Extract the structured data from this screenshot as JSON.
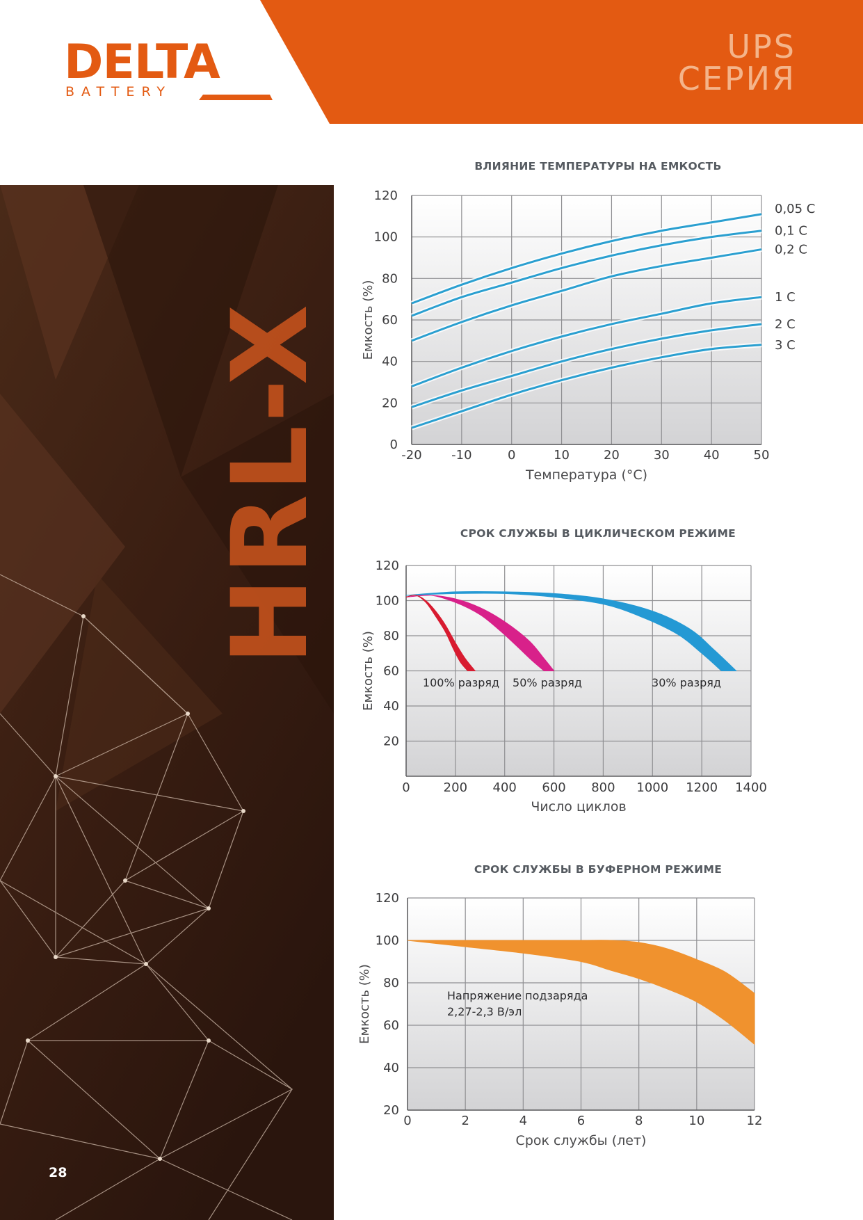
{
  "brand": {
    "logo_word": "DELTA",
    "logo_sub": "BATTERY",
    "series_line1": "UPS",
    "series_line2": "СЕРИЯ",
    "accent_color": "#e35a12",
    "side_text": "HRL-X"
  },
  "page_number": "28",
  "charts": [
    {
      "title": "ВЛИЯНИЕ ТЕМПЕРАТУРЫ НА ЕМКОСТЬ",
      "chart_data": {
        "type": "line",
        "title": "ВЛИЯНИЕ ТЕМПЕРАТУРЫ НА ЕМКОСТЬ",
        "xlabel": "Температура (°C)",
        "ylabel": "Емкость (%)",
        "xlim": [
          -20,
          50
        ],
        "ylim": [
          0,
          120
        ],
        "x_ticks": [
          "-20",
          "-10",
          "0",
          "10",
          "20",
          "30",
          "40",
          "50"
        ],
        "y_ticks": [
          "0",
          "20",
          "40",
          "60",
          "80",
          "100",
          "120"
        ],
        "grid": true,
        "line_color": "#2a9fd0",
        "series": [
          {
            "name": "0,05 C",
            "x": [
              -20,
              -10,
              0,
              10,
              20,
              30,
              40,
              50
            ],
            "y": [
              68,
              77,
              85,
              92,
              98,
              103,
              107,
              111
            ]
          },
          {
            "name": "0,1 C",
            "x": [
              -20,
              -10,
              0,
              10,
              20,
              30,
              40,
              50
            ],
            "y": [
              62,
              71,
              78,
              85,
              91,
              96,
              100,
              103
            ]
          },
          {
            "name": "0,2 C",
            "x": [
              -20,
              -10,
              0,
              10,
              20,
              30,
              40,
              50
            ],
            "y": [
              50,
              59,
              67,
              74,
              81,
              86,
              90,
              94
            ]
          },
          {
            "name": "1 C",
            "x": [
              -20,
              -10,
              0,
              10,
              20,
              30,
              40,
              50
            ],
            "y": [
              28,
              37,
              45,
              52,
              58,
              63,
              68,
              71
            ]
          },
          {
            "name": "2 C",
            "x": [
              -20,
              -10,
              0,
              10,
              20,
              30,
              40,
              50
            ],
            "y": [
              18,
              26,
              33,
              40,
              46,
              51,
              55,
              58
            ]
          },
          {
            "name": "3 C",
            "x": [
              -20,
              -10,
              0,
              10,
              20,
              30,
              40,
              50
            ],
            "y": [
              8,
              16,
              24,
              31,
              37,
              42,
              46,
              48
            ]
          }
        ]
      }
    },
    {
      "title": "СРОК СЛУЖБЫ В ЦИКЛИЧЕСКОМ РЕЖИМЕ",
      "chart_data": {
        "type": "area",
        "title": "СРОК СЛУЖБЫ В ЦИКЛИЧЕСКОМ РЕЖИМЕ",
        "xlabel": "Число циклов",
        "ylabel": "Емкость (%)",
        "xlim": [
          0,
          1400
        ],
        "ylim": [
          0,
          120
        ],
        "x_ticks": [
          "0",
          "200",
          "400",
          "600",
          "800",
          "1000",
          "1200",
          "1400"
        ],
        "y_ticks": [
          "20",
          "40",
          "60",
          "80",
          "100",
          "120"
        ],
        "grid": true,
        "series": [
          {
            "name": "100% разряд",
            "color": "#d81b30",
            "upper": {
              "x": [
                0,
                40,
                80,
                120,
                160,
                200,
                240,
                280
              ],
              "y": [
                102,
                103,
                100,
                94,
                86,
                76,
                67,
                60
              ]
            },
            "lower": {
              "x": [
                0,
                40,
                80,
                120,
                160,
                190,
                220,
                250
              ],
              "y": [
                102,
                103,
                99,
                91,
                82,
                73,
                65,
                60
              ]
            }
          },
          {
            "name": "50% разряд",
            "color": "#d8218a",
            "upper": {
              "x": [
                0,
                100,
                200,
                300,
                400,
                500,
                560,
                600
              ],
              "y": [
                102,
                103,
                101,
                96,
                88,
                77,
                67,
                60
              ]
            },
            "lower": {
              "x": [
                0,
                100,
                200,
                300,
                380,
                450,
                510,
                560
              ],
              "y": [
                102,
                103,
                99,
                92,
                83,
                74,
                66,
                60
              ]
            }
          },
          {
            "name": "30% разряд",
            "color": "#2499d4",
            "upper": {
              "x": [
                0,
                200,
                400,
                600,
                800,
                1000,
                1150,
                1250,
                1340
              ],
              "y": [
                103,
                105,
                105,
                104,
                101,
                94,
                84,
                72,
                60
              ]
            },
            "lower": {
              "x": [
                0,
                200,
                400,
                600,
                800,
                950,
                1100,
                1200,
                1280
              ],
              "y": [
                103,
                104,
                104,
                102,
                98,
                91,
                81,
                70,
                60
              ]
            }
          }
        ]
      }
    },
    {
      "title": "СРОК СЛУЖБЫ В БУФЕРНОМ РЕЖИМЕ",
      "chart_data": {
        "type": "area",
        "title": "СРОК СЛУЖБЫ В БУФЕРНОМ РЕЖИМЕ",
        "xlabel": "Срок службы (лет)",
        "ylabel": "Емкость (%)",
        "xlim": [
          0,
          12
        ],
        "ylim": [
          20,
          120
        ],
        "x_ticks": [
          "0",
          "2",
          "4",
          "6",
          "8",
          "10",
          "12"
        ],
        "y_ticks": [
          "20",
          "40",
          "60",
          "80",
          "100",
          "120"
        ],
        "grid": true,
        "annotation_line1": "Напряжение подзаряда",
        "annotation_line2": "2,27-2,3 В/эл",
        "series": [
          {
            "color": "#f0922e",
            "upper": {
              "x": [
                0,
                2,
                4,
                6,
                7,
                8,
                9,
                10,
                11,
                12
              ],
              "y": [
                100,
                100,
                100,
                100,
                100,
                99,
                96,
                91,
                85,
                75
              ]
            },
            "lower": {
              "x": [
                0,
                2,
                4,
                6,
                7,
                8,
                9,
                10,
                11,
                12
              ],
              "y": [
                100,
                97,
                94,
                90,
                86,
                82,
                77,
                71,
                62,
                51
              ]
            }
          }
        ]
      }
    }
  ]
}
